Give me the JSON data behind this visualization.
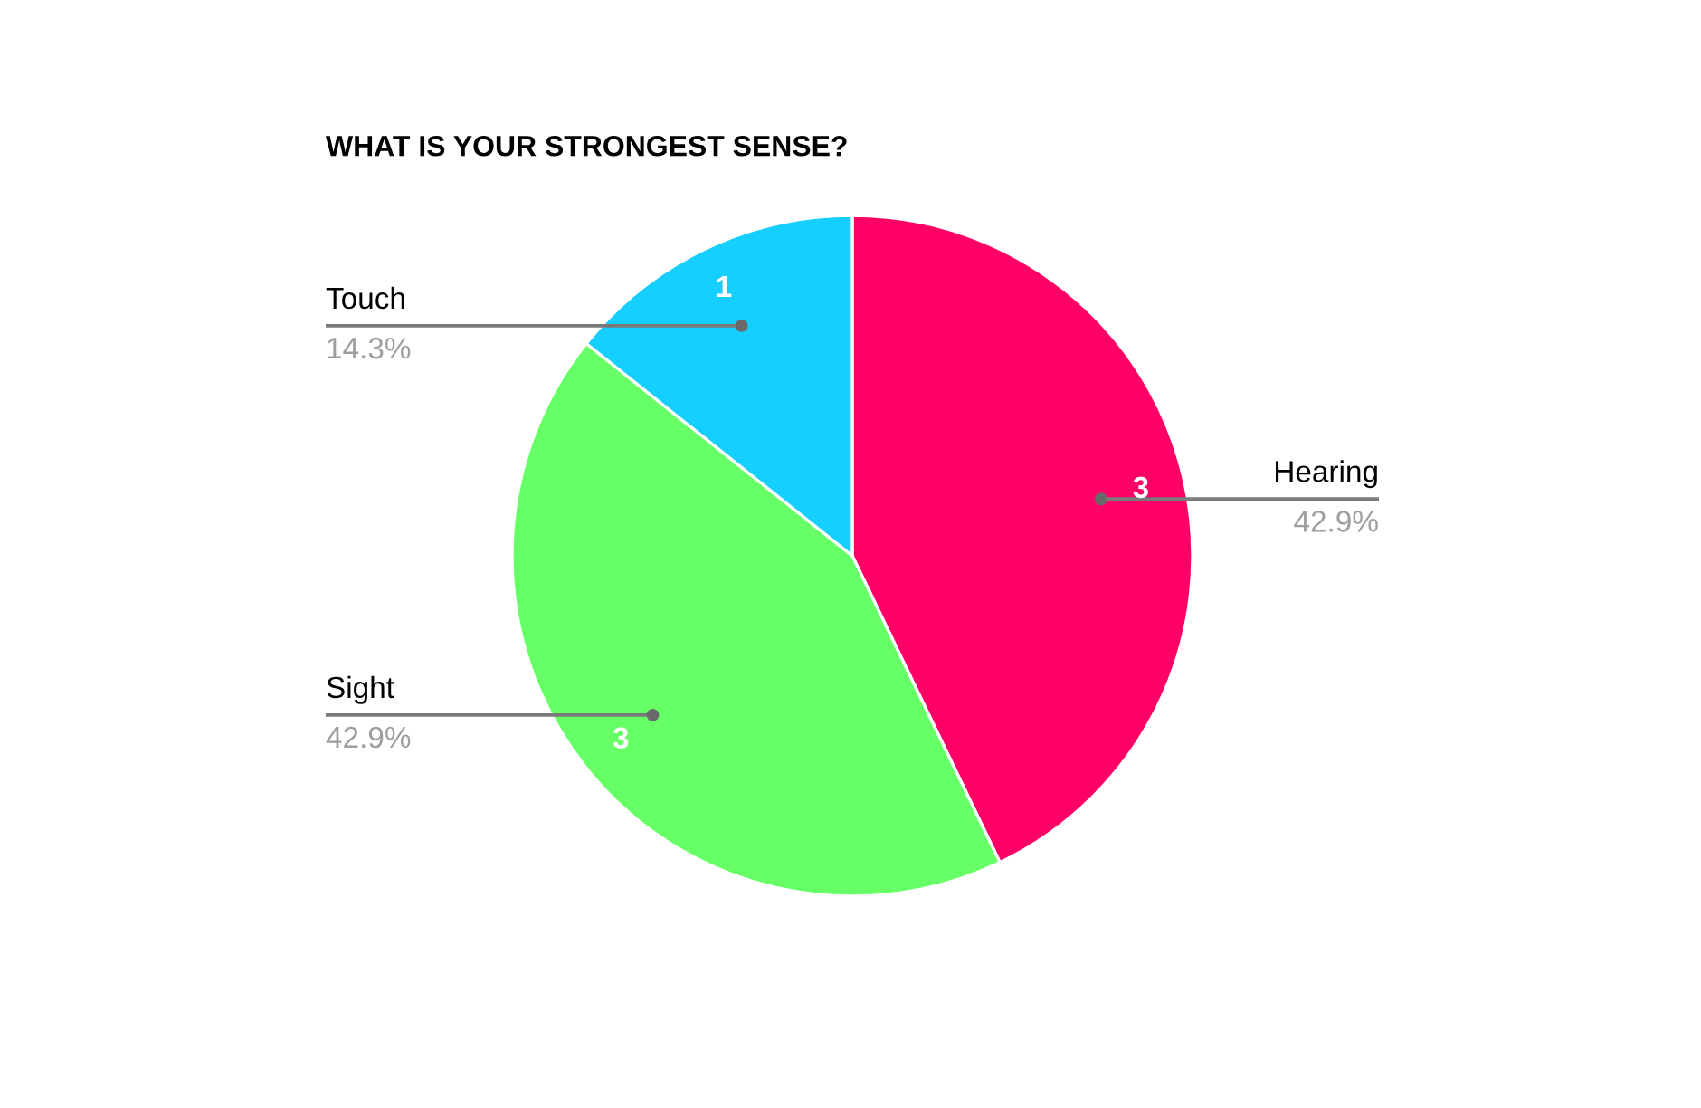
{
  "chart_data": {
    "type": "pie",
    "title": "WHAT IS YOUR STRONGEST SENSE?",
    "categories": [
      "Hearing",
      "Sight",
      "Touch"
    ],
    "values": [
      3,
      3,
      1
    ],
    "colors": [
      "#ff0066",
      "#66ff66",
      "#14cfff"
    ],
    "data_labels": true,
    "annotations": [
      {
        "text": "42.9%",
        "x": "Hearing"
      },
      {
        "text": "42.9%",
        "x": "Sight"
      },
      {
        "text": "14.3%",
        "x": "Touch"
      }
    ]
  }
}
